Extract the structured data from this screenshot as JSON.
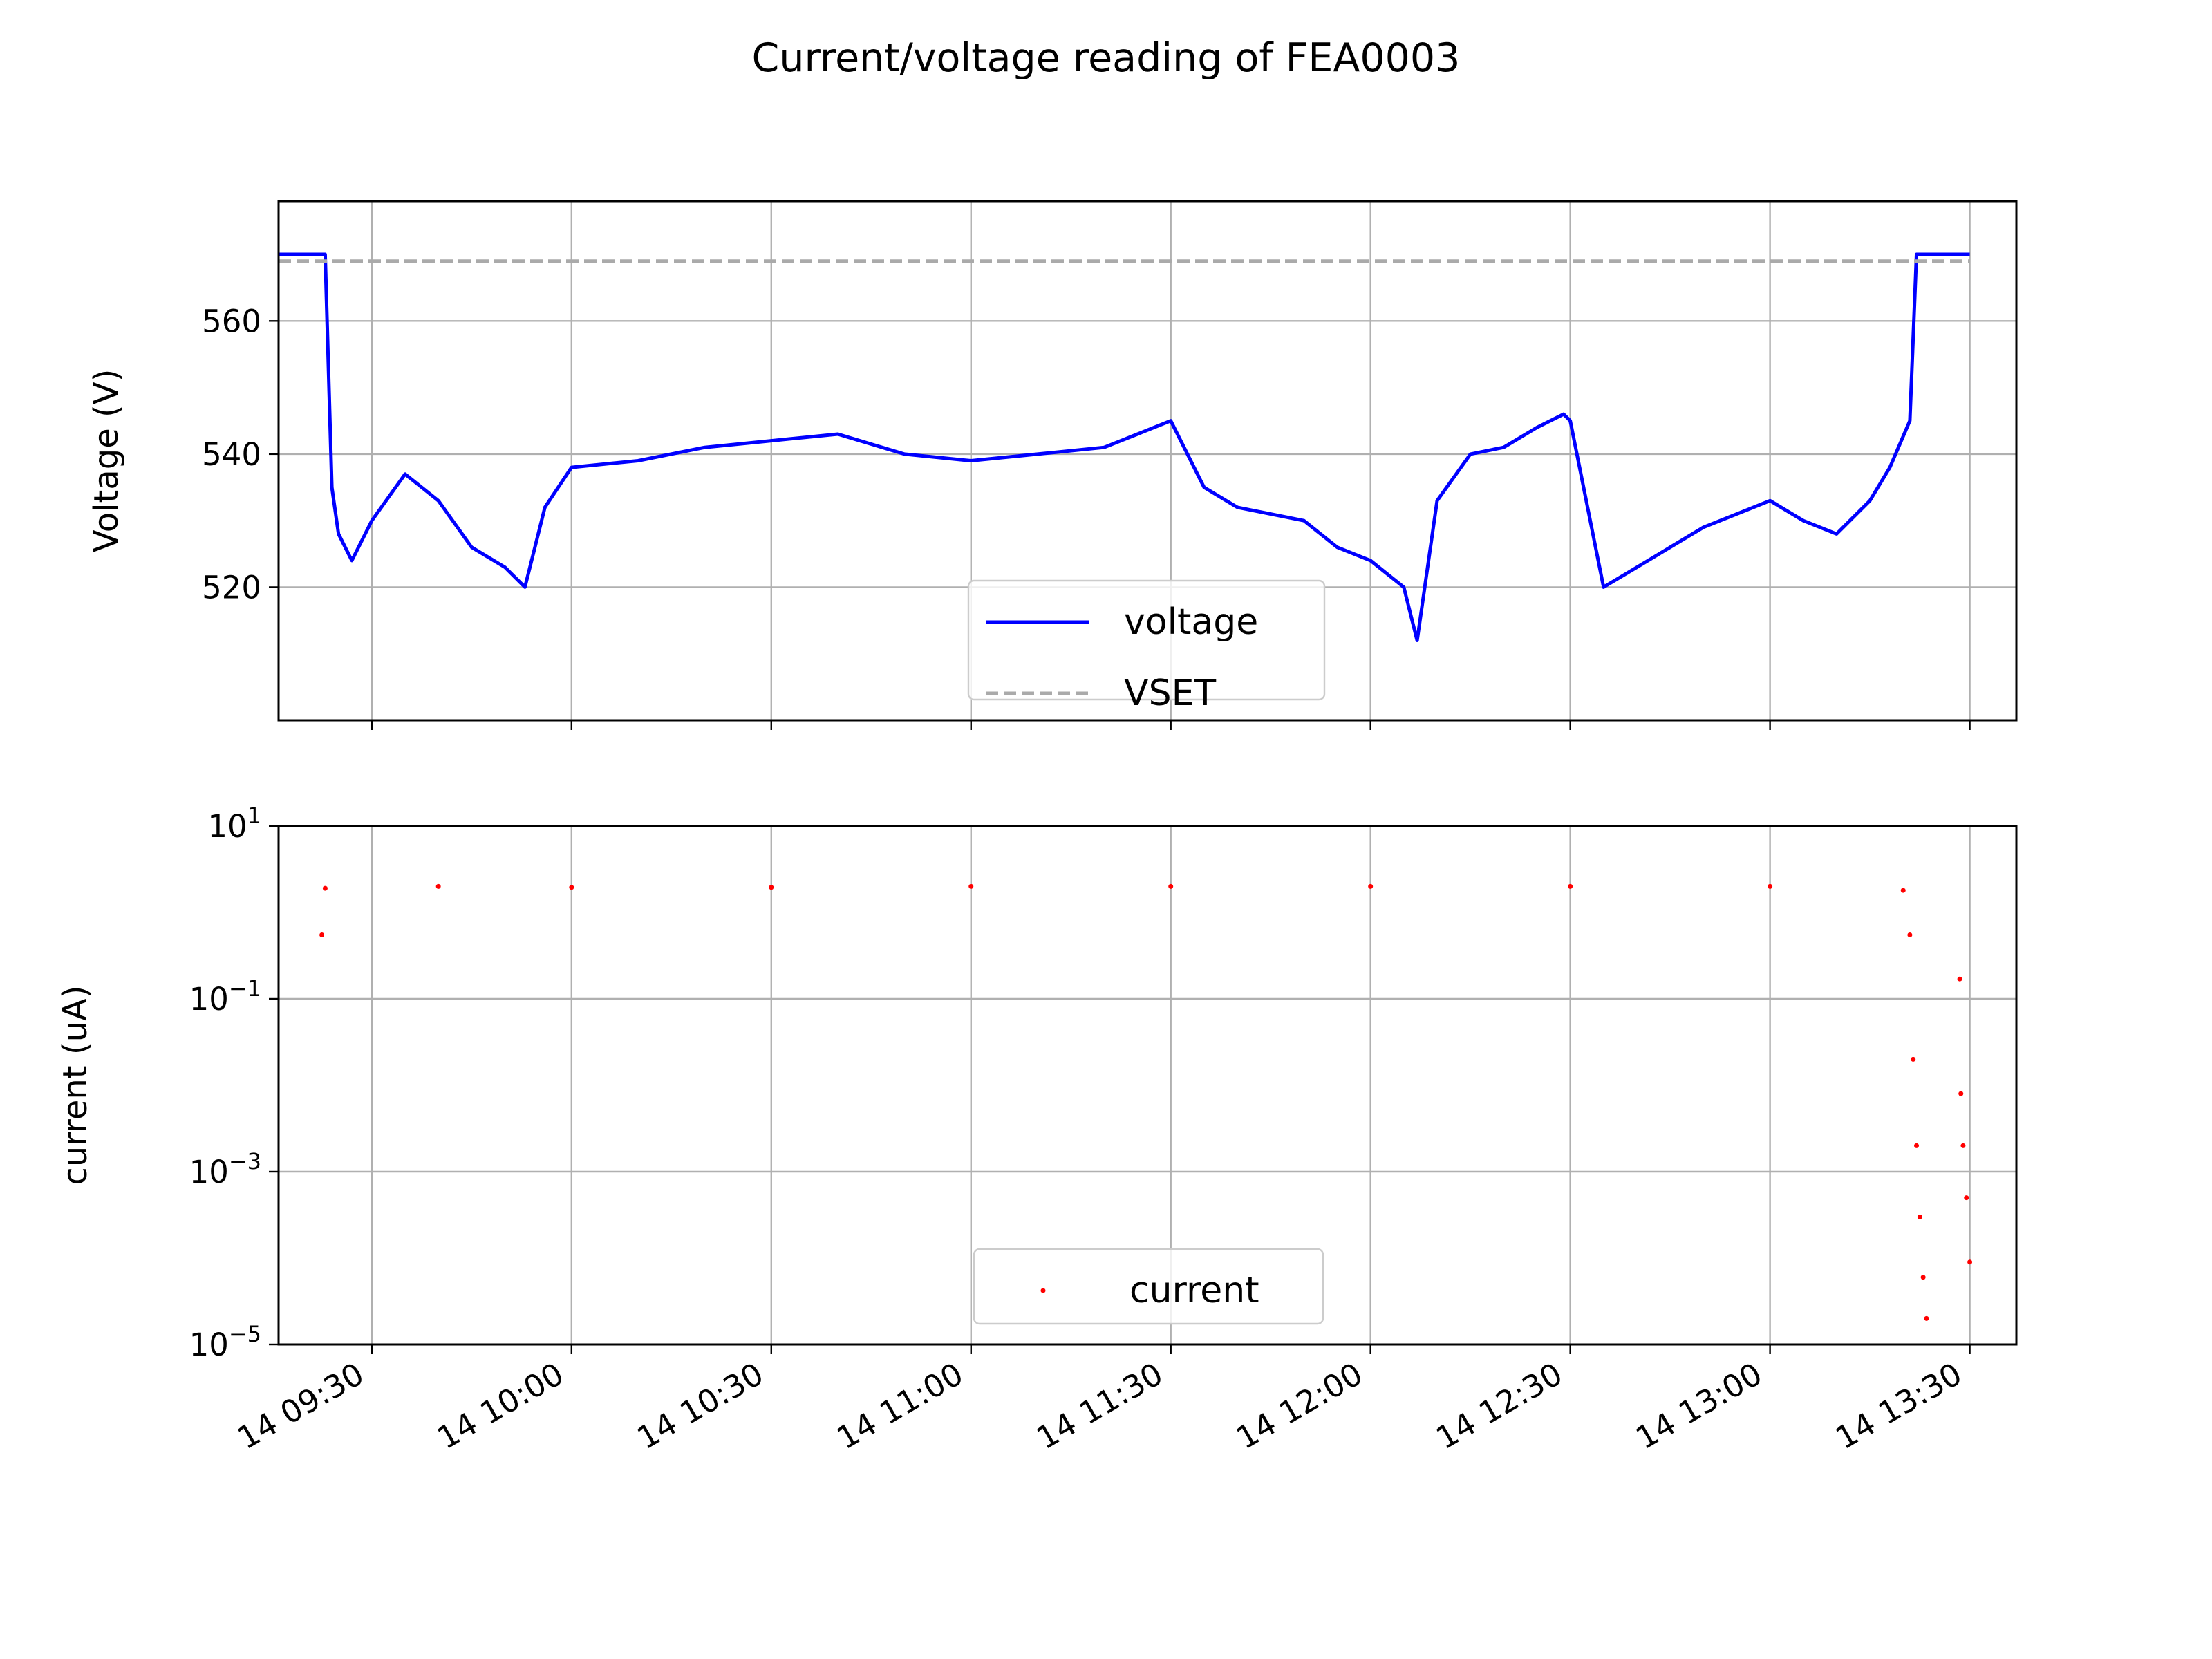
{
  "figure": {
    "title": "Current/voltage reading of FEA0003"
  },
  "chart_data": [
    {
      "type": "line",
      "ylabel": "Voltage (V)",
      "xlabel": "",
      "xlim": [
        "14 09:16",
        "14 13:37"
      ],
      "ylim": [
        500,
        578
      ],
      "x_ticks": [
        "14 09:30",
        "14 10:00",
        "14 10:30",
        "14 11:00",
        "14 11:30",
        "14 12:00",
        "14 12:30",
        "14 13:00",
        "14 13:30"
      ],
      "x_ticks_labeled": false,
      "y_ticks": [
        520,
        540,
        560
      ],
      "grid": true,
      "legend": {
        "placement": "lower center",
        "entries": [
          "voltage",
          "VSET"
        ]
      },
      "series": [
        {
          "name": "voltage",
          "color": "#0000ff",
          "style": "solid",
          "x": [
            "14 09:16",
            "14 09:23",
            "14 09:24",
            "14 09:25",
            "14 09:27",
            "14 09:30",
            "14 09:35",
            "14 09:40",
            "14 09:45",
            "14 09:50",
            "14 09:53",
            "14 09:56",
            "14 10:00",
            "14 10:10",
            "14 10:20",
            "14 10:30",
            "14 10:40",
            "14 10:50",
            "14 11:00",
            "14 11:10",
            "14 11:20",
            "14 11:25",
            "14 11:30",
            "14 11:35",
            "14 11:40",
            "14 11:50",
            "14 11:55",
            "14 12:00",
            "14 12:05",
            "14 12:07",
            "14 12:10",
            "14 12:15",
            "14 12:20",
            "14 12:25",
            "14 12:29",
            "14 12:30",
            "14 12:35",
            "14 12:40",
            "14 12:50",
            "14 13:00",
            "14 13:05",
            "14 13:10",
            "14 13:15",
            "14 13:18",
            "14 13:21",
            "14 13:22",
            "14 13:30"
          ],
          "y": [
            570,
            570,
            535,
            528,
            524,
            530,
            537,
            533,
            526,
            523,
            520,
            532,
            538,
            539,
            541,
            542,
            543,
            540,
            539,
            540,
            541,
            543,
            545,
            535,
            532,
            530,
            526,
            524,
            520,
            512,
            533,
            540,
            541,
            544,
            546,
            545,
            520,
            523,
            529,
            533,
            530,
            528,
            533,
            538,
            545,
            570,
            570
          ]
        },
        {
          "name": "VSET",
          "color": "#aaaaaa",
          "style": "dashed",
          "x": [
            "14 09:16",
            "14 13:30"
          ],
          "y": [
            569,
            569
          ]
        }
      ]
    },
    {
      "type": "scatter",
      "ylabel": "current (uA)",
      "xlabel": "",
      "yscale": "log",
      "xlim": [
        "14 09:16",
        "14 13:37"
      ],
      "ylim": [
        1e-05,
        10
      ],
      "x_ticks": [
        "14 09:30",
        "14 10:00",
        "14 10:30",
        "14 11:00",
        "14 11:30",
        "14 12:00",
        "14 12:30",
        "14 13:00",
        "14 13:30"
      ],
      "y_ticks": [
        1e-05,
        0.001,
        0.1,
        10
      ],
      "y_tick_labels": [
        {
          "base": "10",
          "exp": "−5"
        },
        {
          "base": "10",
          "exp": "−3"
        },
        {
          "base": "10",
          "exp": "−1"
        },
        {
          "base": "10",
          "exp": "1"
        }
      ],
      "grid": true,
      "legend": {
        "placement": "lower center",
        "entries": [
          "current"
        ]
      },
      "series": [
        {
          "name": "current",
          "color": "#ff0000",
          "style": "points",
          "points": [
            {
              "x": "14 09:22:30",
              "y": 0.55
            },
            {
              "x": "14 09:23:00",
              "y": 1.9
            },
            {
              "x": "14 09:40",
              "y": 2.0
            },
            {
              "x": "14 10:00",
              "y": 1.95
            },
            {
              "x": "14 10:30",
              "y": 1.95
            },
            {
              "x": "14 11:00",
              "y": 2.0
            },
            {
              "x": "14 11:30",
              "y": 2.0
            },
            {
              "x": "14 12:00",
              "y": 2.0
            },
            {
              "x": "14 12:30",
              "y": 2.0
            },
            {
              "x": "14 13:00",
              "y": 2.0
            },
            {
              "x": "14 13:20",
              "y": 1.8
            },
            {
              "x": "14 13:21:00",
              "y": 0.55
            },
            {
              "x": "14 13:21:30",
              "y": 0.02
            },
            {
              "x": "14 13:22:00",
              "y": 0.002
            },
            {
              "x": "14 13:22:30",
              "y": 0.0003
            },
            {
              "x": "14 13:23:00",
              "y": 6e-05
            },
            {
              "x": "14 13:23:30",
              "y": 2e-05
            },
            {
              "x": "14 13:28:30",
              "y": 0.17
            },
            {
              "x": "14 13:28:40",
              "y": 0.008
            },
            {
              "x": "14 13:29:00",
              "y": 0.002
            },
            {
              "x": "14 13:29:30",
              "y": 0.0005
            },
            {
              "x": "14 13:30:00",
              "y": 9e-05
            }
          ]
        }
      ]
    }
  ]
}
